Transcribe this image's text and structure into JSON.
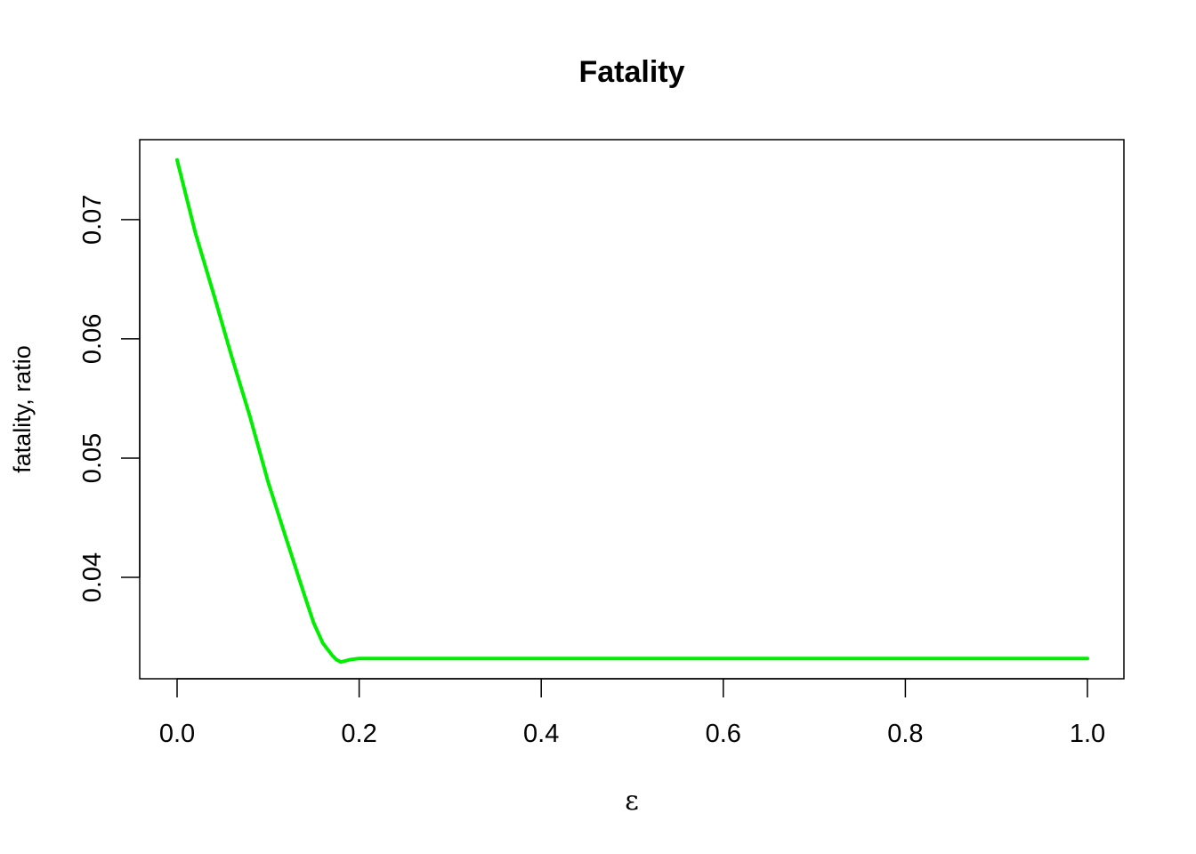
{
  "chart_data": {
    "type": "line",
    "title": "Fatality",
    "xlabel": "ε",
    "ylabel": "fatality, ratio",
    "xlim": [
      0.0,
      1.0
    ],
    "ylim": [
      0.0315,
      0.0767
    ],
    "x_ticks": [
      0.0,
      0.2,
      0.4,
      0.6,
      0.8,
      1.0
    ],
    "x_tick_labels": [
      "0.0",
      "0.2",
      "0.4",
      "0.6",
      "0.8",
      "1.0"
    ],
    "y_ticks": [
      0.04,
      0.05,
      0.06,
      0.07
    ],
    "y_tick_labels": [
      "0.04",
      "0.05",
      "0.06",
      "0.07"
    ],
    "grid": false,
    "series": [
      {
        "color": "#00ee00",
        "x": [
          0.0,
          0.02,
          0.04,
          0.06,
          0.08,
          0.1,
          0.12,
          0.14,
          0.15,
          0.16,
          0.17,
          0.175,
          0.18,
          0.19,
          0.2,
          0.25,
          0.3,
          0.4,
          0.5,
          0.6,
          0.7,
          0.8,
          0.9,
          1.0
        ],
        "y": [
          0.075,
          0.0689,
          0.0638,
          0.0585,
          0.0535,
          0.048,
          0.0432,
          0.0385,
          0.0362,
          0.0345,
          0.0335,
          0.0331,
          0.0329,
          0.0331,
          0.0332,
          0.0332,
          0.0332,
          0.0332,
          0.0332,
          0.0332,
          0.0332,
          0.0332,
          0.0332,
          0.0332
        ]
      }
    ]
  }
}
